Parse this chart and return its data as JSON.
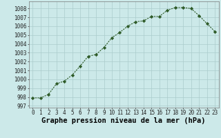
{
  "x": [
    0,
    1,
    2,
    3,
    4,
    5,
    6,
    7,
    8,
    9,
    10,
    11,
    12,
    13,
    14,
    15,
    16,
    17,
    18,
    19,
    20,
    21,
    22,
    23
  ],
  "y": [
    997.9,
    997.9,
    998.3,
    999.5,
    999.8,
    1000.5,
    1001.5,
    1002.6,
    1002.8,
    1003.6,
    1004.7,
    1005.3,
    1006.0,
    1006.5,
    1006.6,
    1007.1,
    1007.1,
    1007.8,
    1008.1,
    1008.1,
    1008.0,
    1007.2,
    1006.3,
    1005.4
  ],
  "line_color": "#2d5a27",
  "marker": "D",
  "marker_size": 2.2,
  "bg_color": "#cce9e9",
  "grid_color": "#aacccc",
  "xlabel": "Graphe pression niveau de la mer (hPa)",
  "ylim": [
    996.8,
    1008.8
  ],
  "xlim": [
    -0.5,
    23.5
  ],
  "yticks": [
    997,
    998,
    999,
    1000,
    1001,
    1002,
    1003,
    1004,
    1005,
    1006,
    1007,
    1008
  ],
  "xticks": [
    0,
    1,
    2,
    3,
    4,
    5,
    6,
    7,
    8,
    9,
    10,
    11,
    12,
    13,
    14,
    15,
    16,
    17,
    18,
    19,
    20,
    21,
    22,
    23
  ],
  "xtick_labels": [
    "0",
    "1",
    "2",
    "3",
    "4",
    "5",
    "6",
    "7",
    "8",
    "9",
    "10",
    "11",
    "12",
    "13",
    "14",
    "15",
    "16",
    "17",
    "18",
    "19",
    "20",
    "21",
    "22",
    "23"
  ],
  "tick_fontsize": 5.5,
  "xlabel_fontsize": 7.5,
  "linewidth": 0.8
}
